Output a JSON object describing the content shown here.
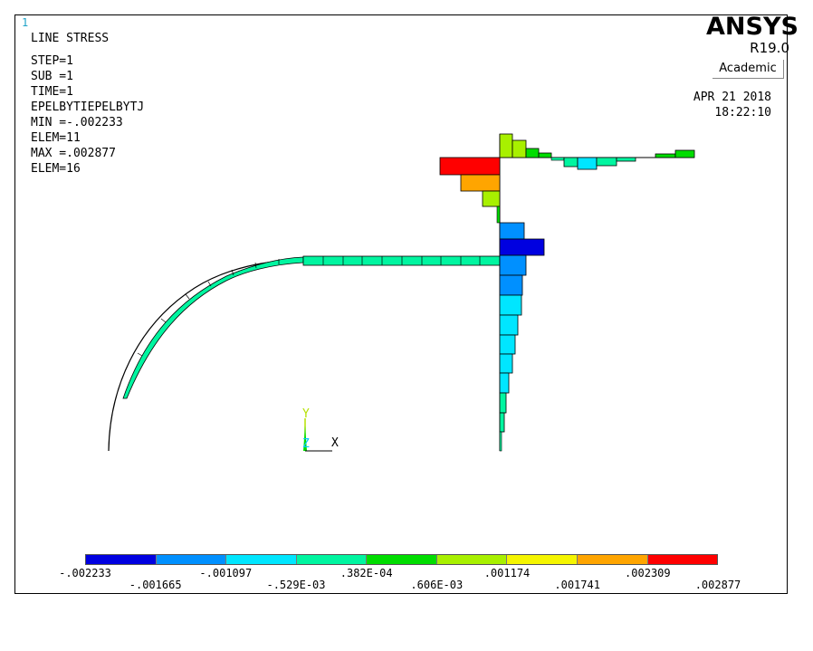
{
  "window_number": "1",
  "info": {
    "title": "LINE STRESS",
    "lines": [
      "STEP=1",
      "SUB =1",
      "TIME=1",
      "EPELBYTIEPELBYTJ",
      "MIN =-.002233",
      "ELEM=11",
      "MAX =.002877",
      "ELEM=16"
    ]
  },
  "logo": {
    "name": "ANSYS",
    "release": "R19.0",
    "edition": "Academic"
  },
  "date": "APR 21 2018",
  "time": "18:22:10",
  "triad": {
    "y_label": "Y",
    "z_label": "Z",
    "x_label": "X"
  },
  "legend": {
    "colors": [
      "#0000e0",
      "#0090ff",
      "#00e6ff",
      "#00f5a0",
      "#00dd00",
      "#a8f000",
      "#f5f500",
      "#ffa500",
      "#ff0000"
    ],
    "upper_labels": [
      ".002233",
      ".001097",
      ".382E-04",
      ".001174",
      ".002309"
    ],
    "upper_labels_display": [
      "-.002233",
      "-.001097",
      ".382E-04",
      ".001174",
      ".002309"
    ],
    "lower_labels_display": [
      "-.001665",
      "-.529E-03",
      ".606E-03",
      ".001741",
      ".002877"
    ]
  }
}
